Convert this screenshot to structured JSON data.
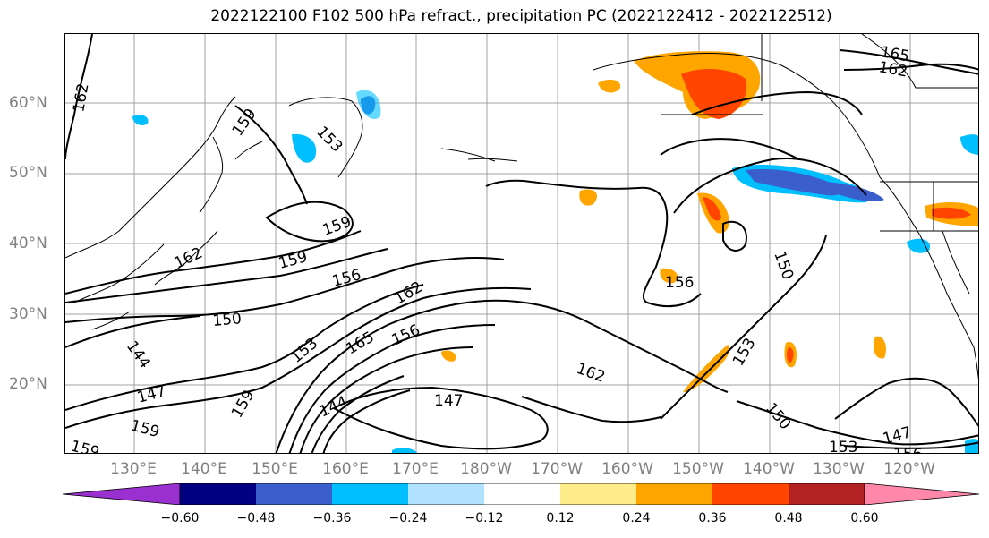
{
  "title": "2022122100 F102 500 hPa refract., precipitation PC (2022122412 - 2022122512)",
  "lat_labels": [
    "60°N",
    "50°N",
    "40°N",
    "30°N",
    "20°N"
  ],
  "lon_labels": [
    "130°E",
    "140°E",
    "150°E",
    "160°E",
    "170°E",
    "180°W",
    "170°W",
    "160°W",
    "150°W",
    "140°W",
    "130°W",
    "120°W"
  ],
  "colorbar": {
    "ticks": [
      "−0.60",
      "−0.48",
      "−0.36",
      "−0.24",
      "−0.12",
      "0.12",
      "0.24",
      "0.36",
      "0.48",
      "0.60"
    ],
    "colors": [
      "#9b30d0",
      "#000080",
      "#3a5fcd",
      "#00bfff",
      "#b0e2ff",
      "#ffffff",
      "#ffec8b",
      "#ffa500",
      "#ff4500",
      "#b22222",
      "#ff88aa"
    ]
  },
  "contour_labels": [
    "165",
    "162",
    "162",
    "159",
    "153",
    "159",
    "162",
    "159",
    "156",
    "162",
    "150",
    "156",
    "144",
    "153",
    "165",
    "156",
    "162",
    "153",
    "150",
    "147",
    "159",
    "144",
    "147",
    "159",
    "159",
    "150",
    "153",
    "147",
    "156"
  ],
  "colors": {
    "grid": "#a0a0a0",
    "tick_label": "#808080",
    "contour": "#000000"
  }
}
